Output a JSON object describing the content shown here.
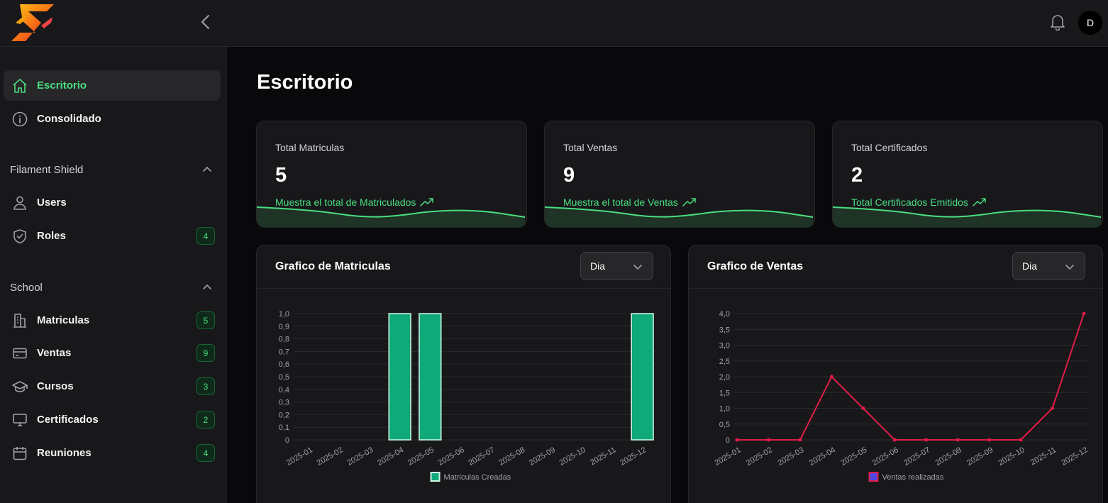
{
  "header": {
    "avatar_initial": "D"
  },
  "sidebar": {
    "top_items": [
      {
        "label": "Escritorio",
        "icon": "home-icon",
        "active": true
      },
      {
        "label": "Consolidado",
        "icon": "info-icon"
      }
    ],
    "groups": [
      {
        "label": "Filament Shield",
        "items": [
          {
            "label": "Users",
            "icon": "user-icon"
          },
          {
            "label": "Roles",
            "icon": "shield-icon",
            "badge": "4"
          }
        ]
      },
      {
        "label": "School",
        "items": [
          {
            "label": "Matriculas",
            "icon": "building-icon",
            "badge": "5"
          },
          {
            "label": "Ventas",
            "icon": "credit-card-icon",
            "badge": "9"
          },
          {
            "label": "Cursos",
            "icon": "graduation-cap-icon",
            "badge": "3"
          },
          {
            "label": "Certificados",
            "icon": "monitor-icon",
            "badge": "2"
          },
          {
            "label": "Reuniones",
            "icon": "calendar-icon",
            "badge": "4"
          }
        ]
      }
    ]
  },
  "page": {
    "title": "Escritorio"
  },
  "stats": [
    {
      "label": "Total Matriculas",
      "value": "5",
      "description": "Muestra el total de Matriculados"
    },
    {
      "label": "Total Ventas",
      "value": "9",
      "description": "Muestra el total de Ventas"
    },
    {
      "label": "Total Certificados",
      "value": "2",
      "description": "Total Certificados Emitidos"
    }
  ],
  "colors": {
    "accent": "#4ade80",
    "bar_fill": "#10a97a",
    "line": "#e11d48"
  },
  "charts": [
    {
      "title": "Grafico de Matriculas",
      "filter": "Dia"
    },
    {
      "title": "Grafico de Ventas",
      "filter": "Dia"
    }
  ],
  "chart_data": [
    {
      "type": "bar",
      "categories": [
        "2025-01",
        "2025-02",
        "2025-03",
        "2025-04",
        "2025-05",
        "2025-06",
        "2025-07",
        "2025-08",
        "2025-09",
        "2025-10",
        "2025-11",
        "2025-12"
      ],
      "series": [
        {
          "name": "Matriculas Creadas",
          "values": [
            0,
            0,
            0,
            1,
            1,
            0,
            0,
            0,
            0,
            0,
            0,
            1
          ]
        }
      ],
      "yticks": [
        "0",
        "0,1",
        "0,2",
        "0,3",
        "0,4",
        "0,5",
        "0,6",
        "0,7",
        "0,8",
        "0,9",
        "1,0"
      ],
      "ylim": [
        0,
        1
      ],
      "legend": "bottom",
      "grid": true
    },
    {
      "type": "line",
      "categories": [
        "2025-01",
        "2025-02",
        "2025-03",
        "2025-04",
        "2025-05",
        "2025-06",
        "2025-07",
        "2025-08",
        "2025-09",
        "2025-10",
        "2025-11",
        "2025-12"
      ],
      "series": [
        {
          "name": "Ventas realizadas",
          "values": [
            0,
            0,
            0,
            2,
            1,
            0,
            0,
            0,
            0,
            0,
            1,
            4
          ]
        }
      ],
      "yticks": [
        "0",
        "0,5",
        "1,0",
        "1,5",
        "2,0",
        "2,5",
        "3,0",
        "3,5",
        "4,0"
      ],
      "ylim": [
        0,
        4
      ],
      "legend": "bottom",
      "grid": true
    }
  ]
}
